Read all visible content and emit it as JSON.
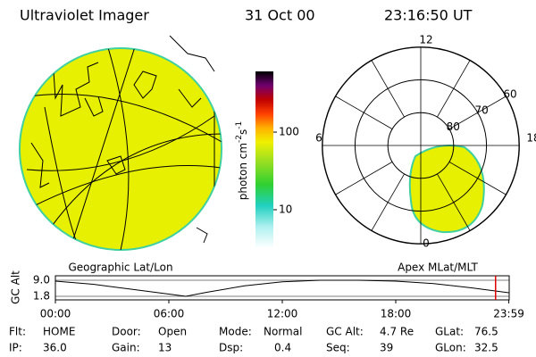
{
  "header": {
    "title": "Ultraviolet Imager",
    "date": "31 Oct 00",
    "time": "23:16:50 UT"
  },
  "colorbar": {
    "label": "photon cm",
    "exp1": "-2",
    "unit2": "s",
    "exp2": "-1",
    "scale": "log",
    "clim": [
      3.2,
      606
    ],
    "ticks": [
      10,
      100
    ]
  },
  "polar": {
    "mlt_labels": [
      {
        "value": 12,
        "label": "12"
      },
      {
        "value": 18,
        "label": "18"
      },
      {
        "value": 6,
        "label": "6"
      },
      {
        "value": 0,
        "label": "0"
      }
    ],
    "rings": [
      60,
      70,
      80
    ]
  },
  "captions": {
    "left": "Geographic Lat/Lon",
    "right": "Apex MLat/MLT"
  },
  "altitude": {
    "ylabel": "GC Alt",
    "x": [
      0,
      2,
      4,
      6,
      6.9,
      8,
      10,
      12,
      14,
      16,
      18,
      20,
      22,
      23.98
    ],
    "values": [
      8.6,
      7.2,
      5.0,
      2.8,
      1.8,
      3.6,
      6.5,
      8.3,
      9.0,
      9.0,
      8.6,
      7.5,
      5.6,
      3.4
    ],
    "xlim": [
      0,
      24
    ],
    "ylim": [
      1.8,
      9.0
    ],
    "yticks": [
      {
        "value": 9.0,
        "label": "9.0"
      },
      {
        "value": 1.8,
        "label": "1.8"
      }
    ],
    "xticks": [
      {
        "value": 0,
        "label": "00:00"
      },
      {
        "value": 6,
        "label": "06:00"
      },
      {
        "value": 12,
        "label": "12:00"
      },
      {
        "value": 18,
        "label": "18:00"
      },
      {
        "value": 23.98,
        "label": "23:59"
      }
    ],
    "marker": 23.28,
    "marker_color": "#e00000"
  },
  "info": [
    [
      {
        "label": "Flt:",
        "value": "HOME"
      },
      {
        "label": "Door:",
        "value": "Open"
      },
      {
        "label": "Mode:",
        "value": "Normal"
      },
      {
        "label": "GC Alt:",
        "value": "4.7 Re"
      },
      {
        "label": "GLat:",
        "value": "76.5"
      }
    ],
    [
      {
        "label": "IP:",
        "value": "36.0"
      },
      {
        "label": "Gain:",
        "value": "13"
      },
      {
        "label": "Dsp:",
        "value": "0.4"
      },
      {
        "label": "Seq:",
        "value": "39"
      },
      {
        "label": "GLon:",
        "value": "32.5"
      }
    ]
  ]
}
